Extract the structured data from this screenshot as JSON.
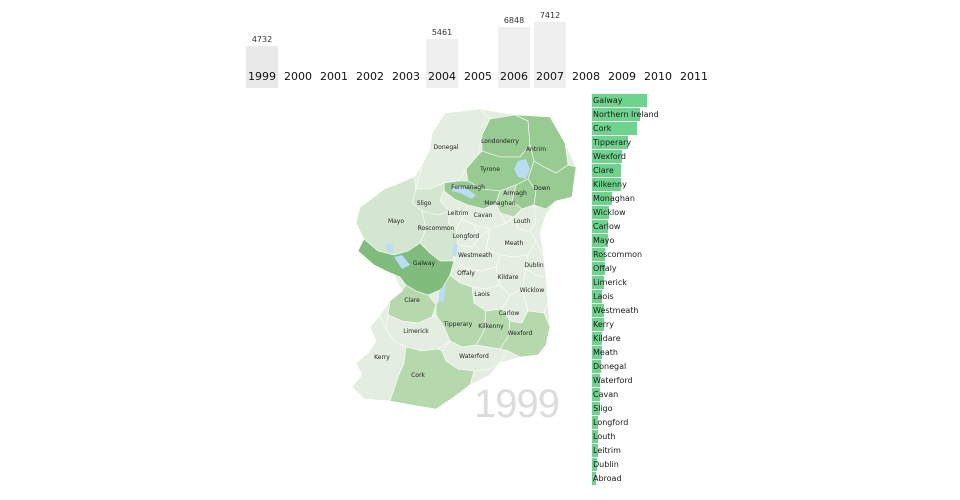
{
  "timeline": {
    "selected_year": "1999",
    "years": [
      {
        "label": "1999",
        "value": "4732",
        "count": 4732
      },
      {
        "label": "2000",
        "value": "",
        "count": 0
      },
      {
        "label": "2001",
        "value": "",
        "count": 0
      },
      {
        "label": "2002",
        "value": "",
        "count": 0
      },
      {
        "label": "2003",
        "value": "",
        "count": 0
      },
      {
        "label": "2004",
        "value": "5461",
        "count": 5461
      },
      {
        "label": "2005",
        "value": "",
        "count": 0
      },
      {
        "label": "2006",
        "value": "6848",
        "count": 6848
      },
      {
        "label": "2007",
        "value": "7412",
        "count": 7412
      },
      {
        "label": "2008",
        "value": "",
        "count": 0
      },
      {
        "label": "2009",
        "value": "",
        "count": 0
      },
      {
        "label": "2010",
        "value": "",
        "count": 0
      },
      {
        "label": "2011",
        "value": "",
        "count": 0
      }
    ]
  },
  "map": {
    "year_watermark": "1999",
    "colors": {
      "light": "#e4eee0",
      "lighter": "#d3e6cf",
      "mid": "#b5d8ad",
      "dark": "#98cb91",
      "darker": "#80bd7c",
      "water": "#b9ddf2"
    },
    "counties": [
      {
        "name": "Donegal",
        "shade": "light"
      },
      {
        "name": "Londonderry",
        "shade": "dark"
      },
      {
        "name": "Antrim",
        "shade": "dark"
      },
      {
        "name": "Tyrone",
        "shade": "dark"
      },
      {
        "name": "Fermanagh",
        "shade": "dark"
      },
      {
        "name": "Armagh",
        "shade": "dark"
      },
      {
        "name": "Down",
        "shade": "dark"
      },
      {
        "name": "Sligo",
        "shade": "lighter"
      },
      {
        "name": "Leitrim",
        "shade": "light"
      },
      {
        "name": "Cavan",
        "shade": "light"
      },
      {
        "name": "Monaghan",
        "shade": "mid"
      },
      {
        "name": "Louth",
        "shade": "light"
      },
      {
        "name": "Mayo",
        "shade": "lighter"
      },
      {
        "name": "Roscommon",
        "shade": "lighter"
      },
      {
        "name": "Longford",
        "shade": "light"
      },
      {
        "name": "Meath",
        "shade": "light"
      },
      {
        "name": "Westmeath",
        "shade": "light"
      },
      {
        "name": "Dublin",
        "shade": "light"
      },
      {
        "name": "Galway",
        "shade": "darker"
      },
      {
        "name": "Offaly",
        "shade": "light"
      },
      {
        "name": "Kildare",
        "shade": "light"
      },
      {
        "name": "Laois",
        "shade": "light"
      },
      {
        "name": "Wicklow",
        "shade": "light"
      },
      {
        "name": "Clare",
        "shade": "mid"
      },
      {
        "name": "Carlow",
        "shade": "light"
      },
      {
        "name": "Tipperary",
        "shade": "mid"
      },
      {
        "name": "Kilkenny",
        "shade": "mid"
      },
      {
        "name": "Limerick",
        "shade": "light"
      },
      {
        "name": "Wexford",
        "shade": "mid"
      },
      {
        "name": "Waterford",
        "shade": "light"
      },
      {
        "name": "Kerry",
        "shade": "light"
      },
      {
        "name": "Cork",
        "shade": "mid"
      }
    ]
  },
  "ranking": {
    "bar_color": "#6ed48d",
    "items": [
      {
        "name": "Galway",
        "value": 0.95
      },
      {
        "name": "Northern Ireland",
        "value": 0.83
      },
      {
        "name": "Cork",
        "value": 0.78
      },
      {
        "name": "Tipperary",
        "value": 0.62
      },
      {
        "name": "Wexford",
        "value": 0.52
      },
      {
        "name": "Clare",
        "value": 0.5
      },
      {
        "name": "Kilkenny",
        "value": 0.5
      },
      {
        "name": "Monaghan",
        "value": 0.34
      },
      {
        "name": "Wicklow",
        "value": 0.3
      },
      {
        "name": "Carlow",
        "value": 0.27
      },
      {
        "name": "Mayo",
        "value": 0.28
      },
      {
        "name": "Roscommon",
        "value": 0.22
      },
      {
        "name": "Offaly",
        "value": 0.22
      },
      {
        "name": "Limerick",
        "value": 0.2
      },
      {
        "name": "Laois",
        "value": 0.18
      },
      {
        "name": "Westmeath",
        "value": 0.2
      },
      {
        "name": "Kerry",
        "value": 0.2
      },
      {
        "name": "Kildare",
        "value": 0.18
      },
      {
        "name": "Meath",
        "value": 0.17
      },
      {
        "name": "Donegal",
        "value": 0.15
      },
      {
        "name": "Waterford",
        "value": 0.14
      },
      {
        "name": "Cavan",
        "value": 0.13
      },
      {
        "name": "Sligo",
        "value": 0.13
      },
      {
        "name": "Longford",
        "value": 0.11
      },
      {
        "name": "Louth",
        "value": 0.11
      },
      {
        "name": "Leitrim",
        "value": 0.1
      },
      {
        "name": "Dublin",
        "value": 0.09
      },
      {
        "name": "Abroad",
        "value": 0.05
      }
    ]
  }
}
